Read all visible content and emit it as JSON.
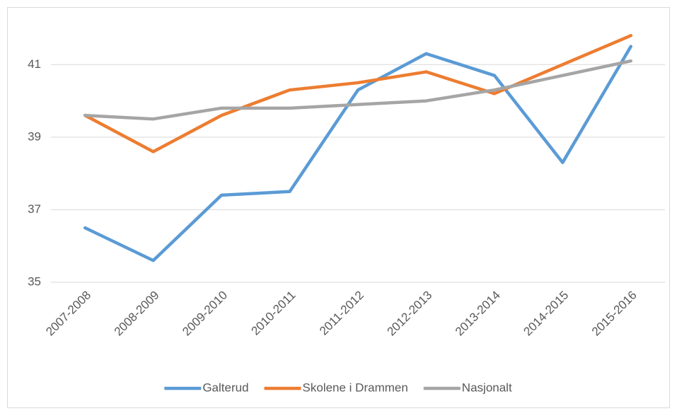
{
  "chart_data": {
    "type": "line",
    "categories": [
      "2007-2008",
      "2008-2009",
      "2009-2010",
      "2010-2011",
      "2011-2012",
      "2012-2013",
      "2013-2014",
      "2014-2015",
      "2015-2016"
    ],
    "series": [
      {
        "name": "Galterud",
        "color": "#5b9bd5",
        "values": [
          36.5,
          35.6,
          37.4,
          37.5,
          40.3,
          41.3,
          40.7,
          38.3,
          41.5
        ]
      },
      {
        "name": "Skolene i Drammen",
        "color": "#ed7d31",
        "values": [
          39.6,
          38.6,
          39.6,
          40.3,
          40.5,
          40.8,
          40.2,
          41.0,
          41.8
        ]
      },
      {
        "name": "Nasjonalt",
        "color": "#a5a5a5",
        "values": [
          39.6,
          39.5,
          39.8,
          39.8,
          39.9,
          40.0,
          40.3,
          40.7,
          41.1
        ]
      }
    ],
    "ylim": [
      35,
      42
    ],
    "yticks": [
      35,
      37,
      39,
      41
    ],
    "grid": true,
    "legend": "bottom"
  }
}
